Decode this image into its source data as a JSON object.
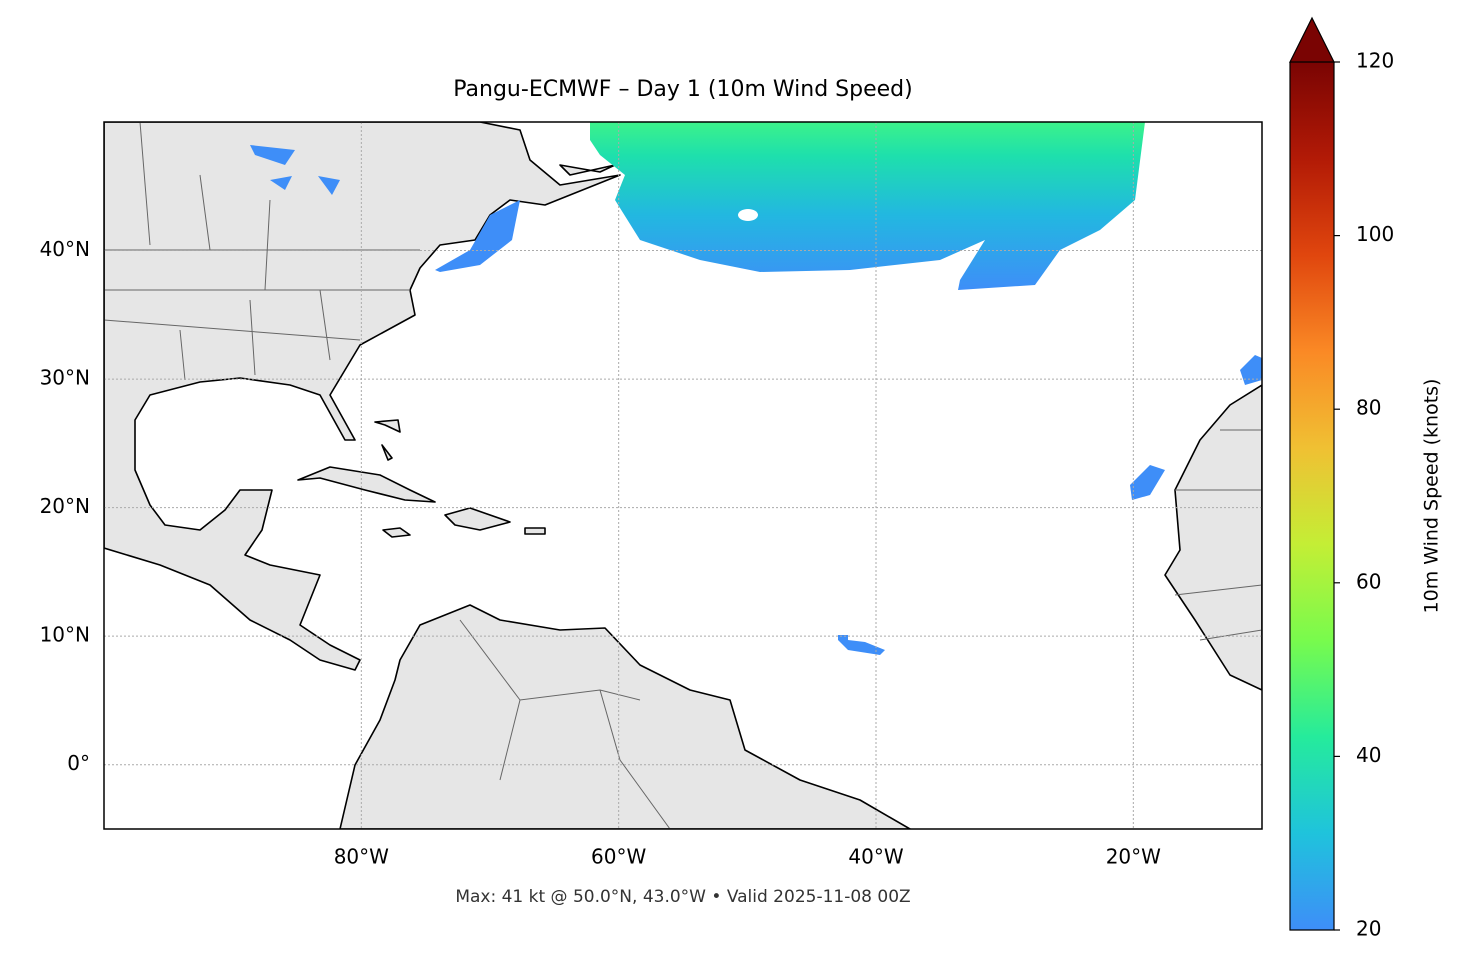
{
  "chart_data": {
    "type": "map",
    "title": "Pangu-ECMWF – Day 1 (10m Wind Speed)",
    "xlim": [
      -100,
      -10
    ],
    "ylim": [
      -5,
      50
    ],
    "xticks": [
      {
        "value": -80,
        "label": "80°W"
      },
      {
        "value": -60,
        "label": "60°W"
      },
      {
        "value": -40,
        "label": "40°W"
      },
      {
        "value": -20,
        "label": "20°W"
      }
    ],
    "yticks": [
      {
        "value": 0,
        "label": "0°"
      },
      {
        "value": 10,
        "label": "10°N"
      },
      {
        "value": 20,
        "label": "20°N"
      },
      {
        "value": 30,
        "label": "30°N"
      },
      {
        "value": 40,
        "label": "40°N"
      }
    ],
    "grid": true,
    "note": "Max: 41 kt @ 50.0°N, 43.0°W • Valid 2025-11-08 00Z",
    "colorbar": {
      "label": "10m Wind Speed (knots)",
      "colormap": "turbo",
      "lim": [
        20,
        120
      ],
      "ticks": [
        20,
        40,
        60,
        80,
        100,
        120
      ],
      "extend": "max"
    }
  }
}
